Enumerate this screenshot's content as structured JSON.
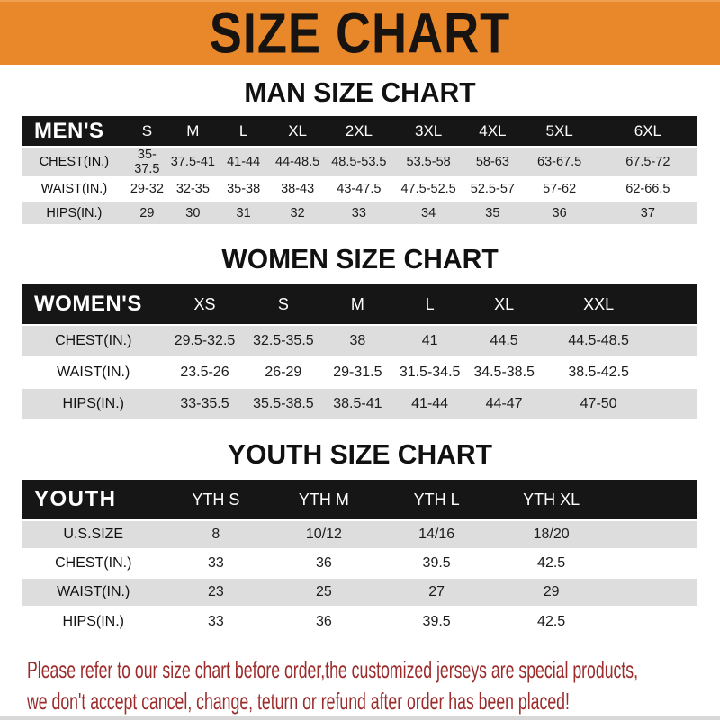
{
  "banner": {
    "title": "SIZE CHART",
    "bg_color": "#E8882B",
    "text_color": "#171310"
  },
  "chart_data": [
    {
      "type": "table",
      "title": "MAN SIZE CHART",
      "header_label": "MEN'S",
      "columns": [
        "S",
        "M",
        "L",
        "XL",
        "2XL",
        "3XL",
        "4XL",
        "5XL",
        "6XL"
      ],
      "rows": [
        {
          "label": "CHEST(IN.)",
          "values": [
            "35-37.5",
            "37.5-41",
            "41-44",
            "44-48.5",
            "48.5-53.5",
            "53.5-58",
            "58-63",
            "63-67.5",
            "67.5-72"
          ]
        },
        {
          "label": "WAIST(IN.)",
          "values": [
            "29-32",
            "32-35",
            "35-38",
            "38-43",
            "43-47.5",
            "47.5-52.5",
            "52.5-57",
            "57-62",
            "62-66.5"
          ]
        },
        {
          "label": "HIPS(IN.)",
          "values": [
            "29",
            "30",
            "31",
            "32",
            "33",
            "34",
            "35",
            "36",
            "37"
          ]
        }
      ]
    },
    {
      "type": "table",
      "title": "WOMEN SIZE CHART",
      "header_label": "WOMEN'S",
      "columns": [
        "XS",
        "S",
        "M",
        "L",
        "XL",
        "XXL"
      ],
      "rows": [
        {
          "label": "CHEST(IN.)",
          "values": [
            "29.5-32.5",
            "32.5-35.5",
            "38",
            "41",
            "44.5",
            "44.5-48.5"
          ]
        },
        {
          "label": "WAIST(IN.)",
          "values": [
            "23.5-26",
            "26-29",
            "29-31.5",
            "31.5-34.5",
            "34.5-38.5",
            "38.5-42.5"
          ]
        },
        {
          "label": "HIPS(IN.)",
          "values": [
            "33-35.5",
            "35.5-38.5",
            "38.5-41",
            "41-44",
            "44-47",
            "47-50"
          ]
        }
      ]
    },
    {
      "type": "table",
      "title": "YOUTH SIZE CHART",
      "header_label": "YOUTH",
      "columns": [
        "YTH S",
        "YTH M",
        "YTH L",
        "YTH XL"
      ],
      "rows": [
        {
          "label": "U.S.SIZE",
          "values": [
            "8",
            "10/12",
            "14/16",
            "18/20"
          ]
        },
        {
          "label": "CHEST(IN.)",
          "values": [
            "33",
            "36",
            "39.5",
            "42.5"
          ]
        },
        {
          "label": "WAIST(IN.)",
          "values": [
            "23",
            "25",
            "27",
            "29"
          ]
        },
        {
          "label": "HIPS(IN.)",
          "values": [
            "33",
            "36",
            "39.5",
            "42.5"
          ]
        }
      ]
    }
  ],
  "footer_note": {
    "color": "#9C2B2B",
    "lines": [
      "Please refer to our size chart before order,the customized jerseys are special products,",
      "we don't accept cancel, change, teturn or refund after order has been placed!"
    ]
  }
}
